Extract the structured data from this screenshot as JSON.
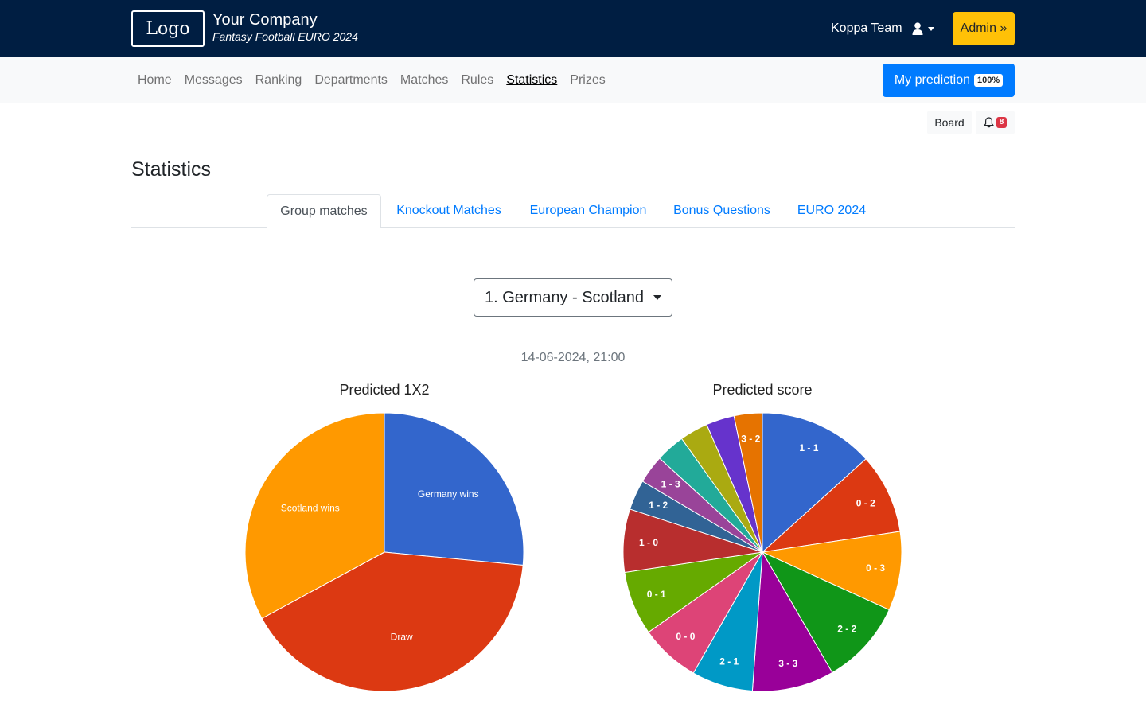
{
  "header": {
    "logo_text": "Logo",
    "company_name": "Your Company",
    "company_sub": "Fantasy Football EURO 2024",
    "team_name": "Koppa Team",
    "admin_label": "Admin »",
    "user_icon": "user-icon",
    "bg_color": "#001e42",
    "admin_color": "#ffc107"
  },
  "nav": {
    "items": [
      "Home",
      "Messages",
      "Ranking",
      "Departments",
      "Matches",
      "Rules",
      "Statistics",
      "Prizes"
    ],
    "active": "Statistics",
    "prediction_label": "My prediction",
    "prediction_badge": "100%",
    "prediction_color": "#007bff"
  },
  "board": {
    "label": "Board",
    "bell_icon": "bell-icon",
    "notification_count": "8"
  },
  "page_title": "Statistics",
  "tabs": {
    "items": [
      "Group matches",
      "Knockout Matches",
      "European Champion",
      "Bonus Questions",
      "EURO 2024"
    ],
    "active": "Group matches"
  },
  "match_select": {
    "value": "1. Germany - Scotland"
  },
  "match_date": "14-06-2024, 21:00",
  "chart_data": [
    {
      "type": "pie",
      "title": "Predicted 1X2",
      "categories": [
        "Germany wins",
        "Draw",
        "Scotland wins"
      ],
      "values": [
        26.5,
        40.6,
        32.9
      ],
      "colors": [
        "#3366cc",
        "#dc3912",
        "#ff9900"
      ]
    },
    {
      "type": "pie",
      "title": "Predicted score",
      "categories": [
        "1 - 1",
        "0 - 2",
        "0 - 3",
        "2 - 2",
        "3 - 3",
        "2 - 1",
        "0 - 0",
        "0 - 1",
        "1 - 0",
        "1 - 2",
        "1 - 3",
        "",
        "",
        "",
        "3 - 2"
      ],
      "values": [
        12.2,
        8.5,
        8.4,
        9.0,
        8.7,
        6.5,
        6.4,
        6.8,
        6.7,
        3.2,
        3.0,
        3.1,
        3.0,
        3.0,
        3.0
      ],
      "colors": [
        "#3366cc",
        "#dc3912",
        "#ff9900",
        "#109618",
        "#990099",
        "#0099c6",
        "#dd4477",
        "#66aa00",
        "#b82e2e",
        "#316395",
        "#994499",
        "#22aa99",
        "#aaaa11",
        "#6633cc",
        "#e67300"
      ]
    }
  ]
}
